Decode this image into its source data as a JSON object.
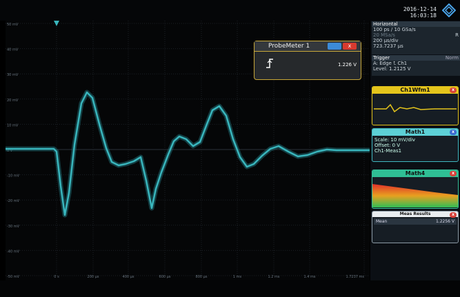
{
  "datetime": {
    "date": "2016-12-14",
    "time": "16:03:18"
  },
  "y_axis_labels": [
    "50 mV",
    "40 mV",
    "30 mV",
    "20 mV",
    "10 mV",
    "0 V",
    "-10 mV",
    "-20 mV",
    "-30 mV",
    "-40 mV",
    "-50 mV"
  ],
  "x_axis_labels": [
    "0 s",
    "200 µs",
    "400 µs",
    "600 µs",
    "800 µs",
    "1 ms",
    "1.2 ms",
    "1.4 ms",
    "1.7237 ms"
  ],
  "horizontal": {
    "title": "Horizontal",
    "timebase": "100 ps / 10 GSa/s",
    "rate": "20 MSa/s",
    "mode": "R",
    "div": "200 µs/div",
    "length": "723.7237 µs"
  },
  "trigger": {
    "title": "Trigger",
    "mode": "Norm",
    "source_line": "A: Edge  ⮤ Ch1",
    "level": "Level: 1.2125 V"
  },
  "tiles": {
    "ch1": {
      "title": "Ch1Wfm1",
      "close": "x"
    },
    "math1": {
      "title": "Math1",
      "close": "x",
      "scale": "Scale: 10 mV/div",
      "offset": "Offset: 0 V",
      "expr": "Ch1-Meas1"
    },
    "math4": {
      "title": "Math4",
      "close": "x"
    },
    "meas": {
      "title": "Meas Results",
      "close": "x",
      "label": "Mean",
      "value": "1.2256 V"
    }
  },
  "probe": {
    "title": "ProbeMeter 1",
    "value": "1.226 V",
    "close": "x"
  },
  "colors": {
    "waveform": "#39b6bd",
    "ch1": "#e5c51c",
    "math1": "#5dd0d6",
    "math4": "#2fbf95",
    "probe_border": "#c9a93a"
  }
}
